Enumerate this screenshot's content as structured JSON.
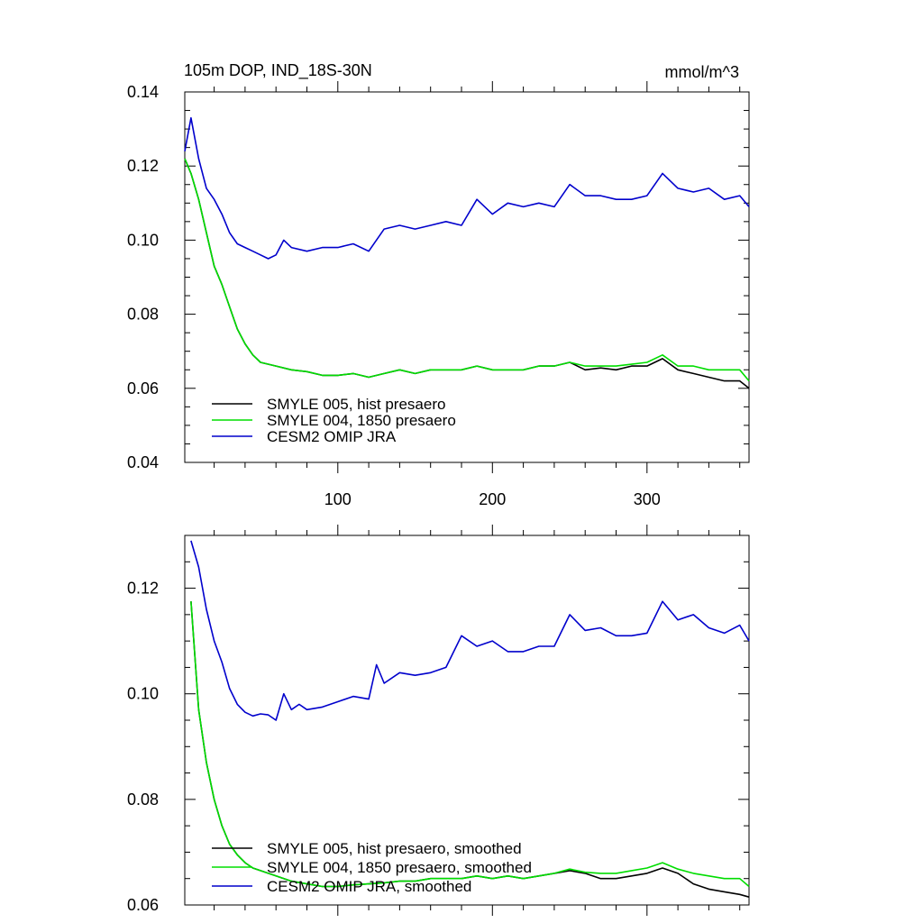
{
  "chart_data": [
    {
      "type": "line",
      "title": "105m DOP, IND_18S-30N",
      "units": "mmol/m^3",
      "xlabel": "",
      "ylabel": "",
      "xlim": [
        1,
        366
      ],
      "ylim": [
        0.04,
        0.14
      ],
      "x_ticks": [
        100,
        200,
        300
      ],
      "y_ticks": [
        0.04,
        0.06,
        0.08,
        0.1,
        0.12,
        0.14
      ],
      "y_tick_labels": [
        "0.04",
        "0.06",
        "0.08",
        "0.10",
        "0.12",
        "0.14"
      ],
      "legend_position": "bottom-left",
      "grid": false,
      "series": [
        {
          "name": "SMYLE 005, hist presaero",
          "color": "#000000",
          "x": [
            1,
            5,
            10,
            15,
            20,
            25,
            30,
            35,
            40,
            45,
            50,
            60,
            70,
            80,
            90,
            100,
            110,
            120,
            130,
            140,
            150,
            160,
            170,
            180,
            190,
            200,
            210,
            220,
            230,
            240,
            250,
            260,
            270,
            280,
            290,
            300,
            310,
            320,
            330,
            340,
            350,
            360,
            366
          ],
          "y": [
            0.122,
            0.118,
            0.111,
            0.102,
            0.093,
            0.088,
            0.082,
            0.076,
            0.072,
            0.069,
            0.067,
            0.066,
            0.065,
            0.0645,
            0.0635,
            0.0635,
            0.064,
            0.063,
            0.064,
            0.065,
            0.064,
            0.065,
            0.065,
            0.065,
            0.066,
            0.065,
            0.065,
            0.065,
            0.066,
            0.066,
            0.067,
            0.065,
            0.0655,
            0.065,
            0.066,
            0.066,
            0.068,
            0.065,
            0.064,
            0.063,
            0.062,
            0.062,
            0.06
          ]
        },
        {
          "name": "SMYLE 004, 1850 presaero",
          "color": "#00dd00",
          "x": [
            1,
            5,
            10,
            15,
            20,
            25,
            30,
            35,
            40,
            45,
            50,
            60,
            70,
            80,
            90,
            100,
            110,
            120,
            130,
            140,
            150,
            160,
            170,
            180,
            190,
            200,
            210,
            220,
            230,
            240,
            250,
            260,
            270,
            280,
            290,
            300,
            310,
            320,
            330,
            340,
            350,
            360,
            366
          ],
          "y": [
            0.122,
            0.118,
            0.111,
            0.102,
            0.093,
            0.088,
            0.082,
            0.076,
            0.072,
            0.069,
            0.067,
            0.066,
            0.065,
            0.0645,
            0.0635,
            0.0635,
            0.064,
            0.063,
            0.064,
            0.065,
            0.064,
            0.065,
            0.065,
            0.065,
            0.066,
            0.065,
            0.065,
            0.065,
            0.066,
            0.066,
            0.067,
            0.066,
            0.066,
            0.066,
            0.0665,
            0.067,
            0.069,
            0.066,
            0.066,
            0.065,
            0.065,
            0.065,
            0.062
          ]
        },
        {
          "name": "CESM2 OMIP JRA",
          "color": "#0000cc",
          "x": [
            1,
            5,
            10,
            15,
            20,
            25,
            30,
            35,
            40,
            45,
            50,
            55,
            60,
            65,
            70,
            80,
            90,
            100,
            110,
            120,
            130,
            140,
            150,
            160,
            170,
            180,
            190,
            200,
            210,
            220,
            230,
            240,
            250,
            260,
            270,
            280,
            290,
            300,
            310,
            320,
            330,
            340,
            350,
            360,
            366
          ],
          "y": [
            0.124,
            0.133,
            0.122,
            0.114,
            0.111,
            0.107,
            0.102,
            0.099,
            0.098,
            0.097,
            0.096,
            0.095,
            0.096,
            0.1,
            0.098,
            0.097,
            0.098,
            0.098,
            0.099,
            0.097,
            0.103,
            0.104,
            0.103,
            0.104,
            0.105,
            0.104,
            0.111,
            0.107,
            0.11,
            0.109,
            0.11,
            0.109,
            0.115,
            0.112,
            0.112,
            0.111,
            0.111,
            0.112,
            0.118,
            0.114,
            0.113,
            0.114,
            0.111,
            0.112,
            0.109
          ]
        }
      ]
    },
    {
      "type": "line",
      "title": "",
      "xlabel": "",
      "ylabel": "",
      "xlim": [
        1,
        366
      ],
      "ylim": [
        0.06,
        0.13
      ],
      "x_ticks": [
        100,
        200,
        300
      ],
      "y_ticks": [
        0.06,
        0.08,
        0.1,
        0.12
      ],
      "y_tick_labels": [
        "0.06",
        "0.08",
        "0.10",
        "0.12"
      ],
      "legend_position": "bottom-left",
      "grid": false,
      "series": [
        {
          "name": "SMYLE 005, hist presaero, smoothed",
          "color": "#000000",
          "x": [
            5,
            10,
            15,
            20,
            25,
            30,
            35,
            40,
            45,
            50,
            60,
            70,
            80,
            90,
            100,
            110,
            120,
            130,
            140,
            150,
            160,
            170,
            180,
            190,
            200,
            210,
            220,
            230,
            240,
            250,
            260,
            270,
            280,
            290,
            300,
            310,
            320,
            330,
            340,
            350,
            360,
            366
          ],
          "y": [
            0.1175,
            0.097,
            0.087,
            0.08,
            0.075,
            0.0715,
            0.0695,
            0.068,
            0.067,
            0.0665,
            0.0655,
            0.0645,
            0.064,
            0.0635,
            0.0635,
            0.0638,
            0.064,
            0.0642,
            0.0645,
            0.0645,
            0.065,
            0.065,
            0.065,
            0.0655,
            0.065,
            0.0655,
            0.065,
            0.0655,
            0.066,
            0.0665,
            0.066,
            0.065,
            0.065,
            0.0655,
            0.066,
            0.067,
            0.066,
            0.064,
            0.063,
            0.0625,
            0.062,
            0.0615
          ]
        },
        {
          "name": "SMYLE 004, 1850 presaero, smoothed",
          "color": "#00dd00",
          "x": [
            5,
            10,
            15,
            20,
            25,
            30,
            35,
            40,
            45,
            50,
            60,
            70,
            80,
            90,
            100,
            110,
            120,
            130,
            140,
            150,
            160,
            170,
            180,
            190,
            200,
            210,
            220,
            230,
            240,
            250,
            260,
            270,
            280,
            290,
            300,
            310,
            320,
            330,
            340,
            350,
            360,
            366
          ],
          "y": [
            0.1175,
            0.097,
            0.087,
            0.08,
            0.075,
            0.0715,
            0.0695,
            0.068,
            0.067,
            0.0665,
            0.0655,
            0.0645,
            0.064,
            0.0635,
            0.0635,
            0.0638,
            0.064,
            0.0642,
            0.0645,
            0.0645,
            0.065,
            0.065,
            0.065,
            0.0655,
            0.065,
            0.0655,
            0.065,
            0.0655,
            0.066,
            0.0668,
            0.0662,
            0.066,
            0.066,
            0.0665,
            0.067,
            0.068,
            0.0668,
            0.066,
            0.0655,
            0.065,
            0.065,
            0.0635
          ]
        },
        {
          "name": "CESM2 OMIP JRA, smoothed",
          "color": "#0000cc",
          "x": [
            5,
            10,
            15,
            20,
            25,
            30,
            35,
            40,
            45,
            50,
            55,
            60,
            65,
            70,
            75,
            80,
            90,
            100,
            110,
            120,
            125,
            130,
            140,
            150,
            160,
            170,
            180,
            190,
            200,
            210,
            220,
            230,
            240,
            250,
            260,
            270,
            280,
            290,
            300,
            310,
            320,
            330,
            340,
            350,
            360,
            366
          ],
          "y": [
            0.129,
            0.124,
            0.116,
            0.11,
            0.106,
            0.101,
            0.098,
            0.0965,
            0.0958,
            0.0962,
            0.096,
            0.095,
            0.1,
            0.097,
            0.098,
            0.097,
            0.0975,
            0.0985,
            0.0995,
            0.099,
            0.1055,
            0.102,
            0.104,
            0.1035,
            0.104,
            0.105,
            0.111,
            0.109,
            0.11,
            0.108,
            0.108,
            0.109,
            0.109,
            0.115,
            0.112,
            0.1125,
            0.111,
            0.111,
            0.1115,
            0.1175,
            0.114,
            0.115,
            0.1125,
            0.1115,
            0.113,
            0.11
          ]
        }
      ]
    }
  ]
}
